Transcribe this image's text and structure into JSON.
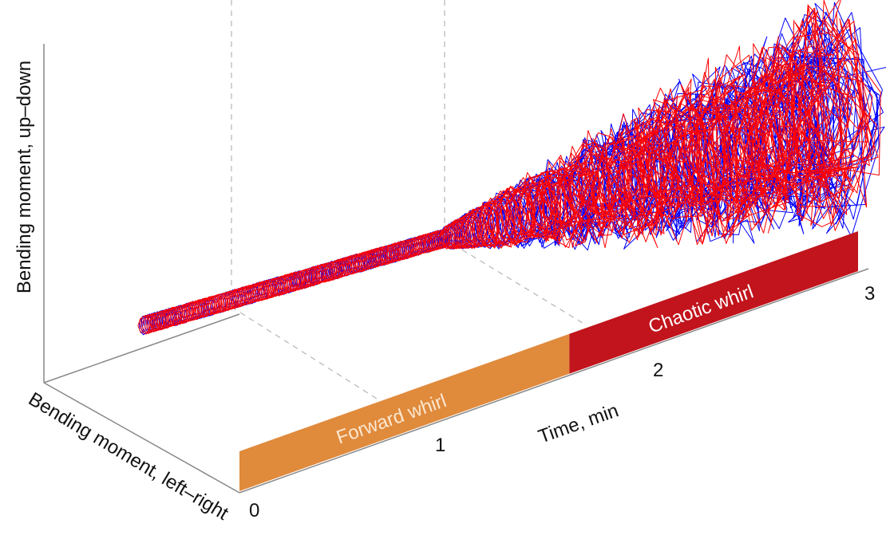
{
  "chart_data": {
    "type": "line",
    "projection": "3d",
    "axes": {
      "x": {
        "label": "Time, min",
        "ticks": [
          "0",
          "1",
          "2",
          "3"
        ],
        "range": [
          0,
          3
        ]
      },
      "y": {
        "label": "Bending moment, left–right"
      },
      "z": {
        "label": "Bending moment, up–down"
      }
    },
    "grid": true,
    "regimes": [
      {
        "label": "Forward whirl",
        "start": 0,
        "end": 1.6,
        "color": "#E08A3C"
      },
      {
        "label": "Chaotic whirl",
        "start": 1.6,
        "end": 3,
        "color": "#C1141C"
      }
    ],
    "series_colors": [
      "#0000FF",
      "#FF0000"
    ]
  }
}
